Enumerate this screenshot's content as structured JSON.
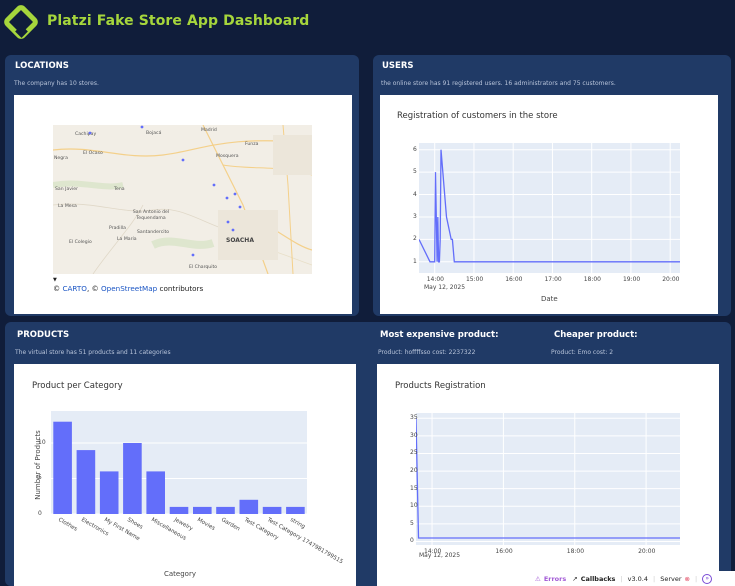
{
  "header": {
    "title": "Platzi Fake Store App Dashboard"
  },
  "locations": {
    "title": "LOCATIONS",
    "subtitle": "The company has 10 stores.",
    "attribution_copy1": "©",
    "attribution_carto": "CARTO",
    "attribution_copy2": ", ©",
    "attribution_osm": "OpenStreetMap",
    "attribution_rest": "contributors",
    "places": [
      "Cachipay",
      "Bojacá",
      "Madrid",
      "Negra",
      "El Ocaso",
      "Funza",
      "Mosquera",
      "San Javier",
      "Tena",
      "La Mesa",
      "San Antonio del Tequendama",
      "Pradilla",
      "Santandercito",
      "La María",
      "El Colegio",
      "SOACHA",
      "El Charquito"
    ]
  },
  "users": {
    "title": "USERS",
    "subtitle": "the online store has 91 registered users. 16 administrators and 75 customers.",
    "chart_data": {
      "type": "line",
      "title": "Registration of customers in the store",
      "xlabel": "Date",
      "ylabel": "",
      "x_ticks": [
        "14:00",
        "15:00",
        "16:00",
        "17:00",
        "18:00",
        "19:00",
        "20:00"
      ],
      "x_subtitle": "May 12, 2025",
      "y_ticks": [
        "1",
        "2",
        "3",
        "4",
        "5",
        "6"
      ],
      "ylim": [
        0.5,
        6.3
      ],
      "xlim": [
        13.6,
        20.25
      ],
      "x": [
        13.6,
        13.88,
        13.9,
        13.92,
        13.94,
        13.96,
        13.98,
        14.0,
        14.02,
        14.06,
        14.08,
        14.1,
        14.12,
        14.14,
        14.16,
        14.3,
        14.42,
        14.45,
        14.5,
        14.7,
        14.9,
        15.1,
        20.25
      ],
      "values": [
        2,
        1,
        1,
        1,
        1,
        1,
        1,
        1,
        5,
        1,
        3,
        1,
        1,
        2,
        6,
        3,
        2,
        2,
        1,
        1,
        1,
        1,
        1
      ]
    }
  },
  "products": {
    "title": "PRODUCTS",
    "subtitle": "The virtual store has 51 products and 11 categories",
    "chart_data": {
      "type": "bar",
      "title": "Product per Category",
      "xlabel": "Category",
      "ylabel": "Number of Products",
      "categories": [
        "Clothes",
        "Electronics",
        "My First Name",
        "Shoes",
        "Miscellaneous",
        "Jewelry",
        "Movies",
        "Garden",
        "Test Category",
        "Test Category 1747981799515",
        "string"
      ],
      "values": [
        13,
        9,
        6,
        10,
        6,
        1,
        1,
        1,
        2,
        1,
        1
      ],
      "y_ticks": [
        "0",
        "5",
        "10"
      ],
      "ylim": [
        0,
        14.5
      ]
    }
  },
  "expensive": {
    "title": "Most expensive product:",
    "subtitle": "Product: hoffffsso cost: 2237322"
  },
  "cheaper": {
    "title": "Cheaper product:",
    "subtitle": "Product: Emo cost: 2"
  },
  "registration": {
    "chart_data": {
      "type": "line",
      "title": "Products Registration",
      "xlabel": "",
      "ylabel": "",
      "x_ticks": [
        "14:00",
        "16:00",
        "18:00",
        "20:00"
      ],
      "x_subtitle": "May 12, 2025",
      "y_ticks": [
        "0",
        "5",
        "10",
        "15",
        "20",
        "25",
        "30",
        "35"
      ],
      "ylim": [
        -1,
        36.5
      ],
      "xlim": [
        13.55,
        20.95
      ],
      "x": [
        13.55,
        13.62,
        13.65,
        20.95
      ],
      "values": [
        35,
        1,
        1,
        1
      ]
    }
  },
  "footer": {
    "errors": "Errors",
    "callbacks": "Callbacks",
    "version": "v3.0.4",
    "server": "Server"
  },
  "colors": {
    "accent": "#a6d63c",
    "series": "#636efa",
    "card": "#203a66",
    "background": "#101d3a"
  }
}
